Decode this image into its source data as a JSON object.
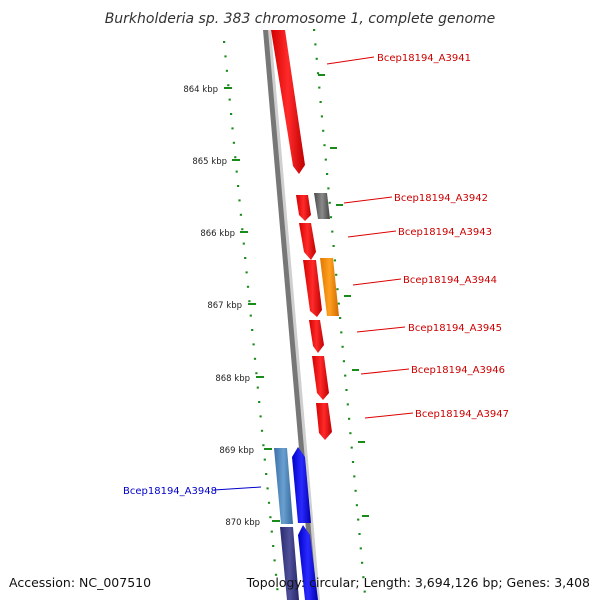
{
  "title": "Burkholderia sp. 383 chromosome 1, complete genome",
  "axis_ticks": [
    "864 kbp",
    "865 kbp",
    "866 kbp",
    "867 kbp",
    "868 kbp",
    "869 kbp",
    "870 kbp"
  ],
  "genes": [
    {
      "label": "Bcep18194_A3941",
      "color": "#ff0000"
    },
    {
      "label": "Bcep18194_A3942",
      "color": "#ff0000"
    },
    {
      "label": "Bcep18194_A3943",
      "color": "#ff0000"
    },
    {
      "label": "Bcep18194_A3944",
      "color": "#ff0000"
    },
    {
      "label": "Bcep18194_A3945",
      "color": "#ff0000"
    },
    {
      "label": "Bcep18194_A3946",
      "color": "#ff0000"
    },
    {
      "label": "Bcep18194_A3947",
      "color": "#ff0000"
    },
    {
      "label": "Bcep18194_A3948",
      "color": "#0000ff"
    }
  ],
  "footer": {
    "accession": "Accession: NC_007510",
    "topology": "Topology: circular; Length: 3,694,126 bp; Genes: 3,408"
  }
}
